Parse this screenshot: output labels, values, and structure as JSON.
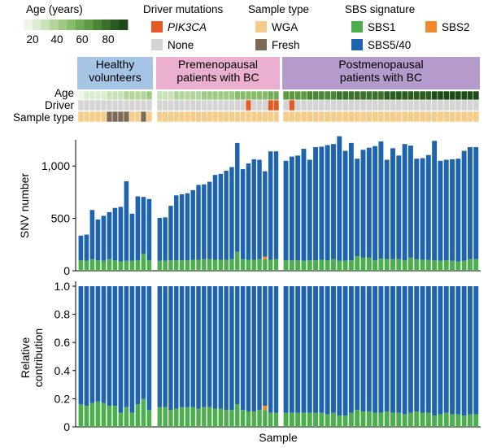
{
  "legend": {
    "age": {
      "title": "Age (years)",
      "ticks": [
        "20",
        "40",
        "60",
        "80"
      ],
      "colors": [
        "#eef6e7",
        "#dcecd0",
        "#c8e1b6",
        "#b3d59b",
        "#9ec982",
        "#88bb6a",
        "#72ab55",
        "#5e9944",
        "#4b8536",
        "#3a702a",
        "#2a5c20",
        "#1e4a18"
      ]
    },
    "driver": {
      "title": "Driver mutations",
      "items": [
        {
          "label": "PIK3CA",
          "color": "#e25a26",
          "italic": true
        },
        {
          "label": "None",
          "color": "#d4d4d4",
          "italic": false
        }
      ]
    },
    "sample_type": {
      "title": "Sample type",
      "items": [
        {
          "label": "WGA",
          "color": "#f6cc8a"
        },
        {
          "label": "Fresh",
          "color": "#7d6a54"
        }
      ]
    },
    "sbs": {
      "title": "SBS signature",
      "items": [
        {
          "label": "SBS1",
          "color": "#4cae4c"
        },
        {
          "label": "SBS2",
          "color": "#f08a2c"
        },
        {
          "label": "SBS5/40",
          "color": "#1e63ad"
        }
      ]
    }
  },
  "groups": [
    {
      "label_lines": [
        "Healthy",
        "volunteers"
      ],
      "color": "#a6c4e4",
      "n": 13
    },
    {
      "label_lines": [
        "Premenopausal",
        "patients with BC"
      ],
      "color": "#ebb0d0",
      "n": 22
    },
    {
      "label_lines": [
        "Postmenopausal",
        "patients with BC"
      ],
      "color": "#b49bcb",
      "n": 33
    }
  ],
  "track_labels": [
    "Age",
    "Driver",
    "Sample type"
  ],
  "samples": {
    "age": [
      22,
      24,
      27,
      28,
      29,
      30,
      31,
      33,
      35,
      36,
      38,
      40,
      42,
      30,
      32,
      33,
      35,
      36,
      38,
      38,
      40,
      41,
      42,
      43,
      44,
      45,
      46,
      47,
      48,
      49,
      50,
      50,
      51,
      52,
      53,
      58,
      60,
      62,
      63,
      64,
      65,
      66,
      67,
      68,
      69,
      70,
      70,
      71,
      72,
      73,
      74,
      74,
      75,
      76,
      77,
      78,
      78,
      79,
      80,
      80,
      81,
      82,
      82,
      83,
      84,
      84,
      85,
      86
    ],
    "driver": [
      "None",
      "None",
      "None",
      "None",
      "None",
      "None",
      "None",
      "None",
      "None",
      "None",
      "None",
      "None",
      "None",
      "None",
      "None",
      "None",
      "None",
      "None",
      "None",
      "None",
      "None",
      "None",
      "None",
      "None",
      "None",
      "None",
      "None",
      "None",
      "None",
      "PIK3CA",
      "None",
      "None",
      "None",
      "PIK3CA",
      "PIK3CA",
      "None",
      "PIK3CA",
      "None",
      "None",
      "None",
      "None",
      "None",
      "None",
      "None",
      "None",
      "None",
      "None",
      "None",
      "None",
      "None",
      "None",
      "None",
      "None",
      "None",
      "None",
      "None",
      "None",
      "None",
      "None",
      "None",
      "None",
      "None",
      "None",
      "None",
      "None",
      "None",
      "None",
      "None"
    ],
    "sample_type": [
      "WGA",
      "WGA",
      "WGA",
      "WGA",
      "WGA",
      "Fresh",
      "Fresh",
      "Fresh",
      "Fresh",
      "WGA",
      "WGA",
      "Fresh",
      "WGA",
      "WGA",
      "WGA",
      "WGA",
      "WGA",
      "WGA",
      "WGA",
      "WGA",
      "WGA",
      "WGA",
      "WGA",
      "WGA",
      "WGA",
      "WGA",
      "WGA",
      "WGA",
      "WGA",
      "WGA",
      "WGA",
      "WGA",
      "WGA",
      "WGA",
      "WGA",
      "WGA",
      "WGA",
      "WGA",
      "WGA",
      "WGA",
      "WGA",
      "WGA",
      "WGA",
      "WGA",
      "WGA",
      "WGA",
      "WGA",
      "WGA",
      "WGA",
      "WGA",
      "WGA",
      "WGA",
      "WGA",
      "WGA",
      "WGA",
      "WGA",
      "WGA",
      "WGA",
      "WGA",
      "WGA",
      "WGA",
      "WGA",
      "WGA",
      "WGA",
      "WGA",
      "WGA",
      "WGA",
      "WGA"
    ]
  },
  "chart_data": [
    {
      "type": "bar",
      "stacked": true,
      "title": "",
      "xlabel": "",
      "ylabel": "SNV number",
      "ylim": [
        0,
        1250
      ],
      "yticks": [
        0,
        500,
        1000
      ],
      "ytick_labels": [
        "0",
        "500",
        "1,000"
      ],
      "series": [
        {
          "name": "SBS1",
          "values": [
            100,
            95,
            110,
            100,
            95,
            110,
            100,
            90,
            95,
            95,
            100,
            160,
            100,
            95,
            95,
            100,
            100,
            100,
            100,
            105,
            105,
            110,
            110,
            105,
            105,
            105,
            110,
            180,
            110,
            105,
            105,
            110,
            110,
            105,
            110,
            100,
            100,
            100,
            95,
            100,
            100,
            105,
            100,
            110,
            95,
            95,
            100,
            140,
            125,
            125,
            100,
            115,
            110,
            110,
            110,
            100,
            125,
            110,
            105,
            105,
            100,
            95,
            100,
            95,
            90,
            95,
            110,
            110
          ]
        },
        {
          "name": "SBS2",
          "values": [
            0,
            0,
            0,
            0,
            0,
            0,
            0,
            0,
            0,
            0,
            0,
            0,
            0,
            0,
            0,
            0,
            0,
            0,
            0,
            0,
            0,
            0,
            0,
            0,
            0,
            0,
            0,
            0,
            0,
            0,
            0,
            0,
            25,
            0,
            0,
            0,
            0,
            0,
            0,
            0,
            0,
            0,
            0,
            0,
            0,
            0,
            0,
            0,
            0,
            0,
            0,
            0,
            0,
            0,
            0,
            0,
            0,
            0,
            0,
            0,
            0,
            0,
            0,
            0,
            0,
            0,
            0,
            0
          ]
        },
        {
          "name": "SBS5/40",
          "values": [
            235,
            250,
            470,
            390,
            430,
            450,
            500,
            520,
            760,
            450,
            610,
            545,
            585,
            410,
            415,
            520,
            620,
            630,
            640,
            665,
            715,
            715,
            740,
            810,
            820,
            850,
            880,
            1040,
            860,
            920,
            960,
            950,
            815,
            1035,
            1030,
            950,
            990,
            1000,
            1070,
            960,
            1080,
            1080,
            1100,
            1100,
            1190,
            1050,
            1120,
            930,
            1030,
            1050,
            1090,
            1120,
            950,
            1060,
            990,
            1110,
            1070,
            960,
            970,
            1000,
            1140,
            955,
            960,
            970,
            980,
            1050,
            1070,
            1070
          ]
        }
      ],
      "totals": [
        335,
        345,
        580,
        490,
        525,
        560,
        600,
        610,
        855,
        545,
        710,
        705,
        685,
        505,
        510,
        620,
        720,
        730,
        740,
        770,
        820,
        825,
        850,
        915,
        925,
        955,
        990,
        1220,
        970,
        1025,
        1065,
        1060,
        950,
        1140,
        1140,
        1050,
        1090,
        1100,
        1165,
        1060,
        1180,
        1185,
        1200,
        1210,
        1285,
        1145,
        1220,
        1070,
        1155,
        1175,
        1190,
        1235,
        1060,
        1170,
        1100,
        1210,
        1195,
        1070,
        1075,
        1105,
        1240,
        1050,
        1060,
        1065,
        1070,
        1145,
        1180,
        1180
      ]
    },
    {
      "type": "bar",
      "stacked": true,
      "title": "",
      "xlabel": "Sample",
      "ylabel": "Relative contribution",
      "ylim": [
        0,
        1.0
      ],
      "yticks": [
        0,
        0.2,
        0.4,
        0.6,
        0.8,
        1.0
      ],
      "ytick_labels": [
        "0",
        "0.2",
        "0.4",
        "0.6",
        "0.8",
        "1.0"
      ],
      "series": [
        {
          "name": "SBS1",
          "values": [
            0.16,
            0.15,
            0.17,
            0.18,
            0.17,
            0.15,
            0.15,
            0.1,
            0.14,
            0.1,
            0.16,
            0.2,
            0.12,
            0.14,
            0.14,
            0.12,
            0.13,
            0.14,
            0.14,
            0.14,
            0.13,
            0.14,
            0.14,
            0.13,
            0.13,
            0.12,
            0.12,
            0.16,
            0.12,
            0.11,
            0.11,
            0.12,
            0.12,
            0.1,
            0.1,
            0.1,
            0.1,
            0.1,
            0.1,
            0.1,
            0.1,
            0.1,
            0.09,
            0.1,
            0.08,
            0.08,
            0.1,
            0.12,
            0.11,
            0.11,
            0.1,
            0.1,
            0.11,
            0.1,
            0.1,
            0.09,
            0.1,
            0.11,
            0.1,
            0.1,
            0.08,
            0.09,
            0.1,
            0.09,
            0.09,
            0.08,
            0.09,
            0.09
          ]
        },
        {
          "name": "SBS2",
          "values": [
            0,
            0,
            0,
            0,
            0,
            0,
            0,
            0,
            0,
            0,
            0,
            0,
            0,
            0,
            0,
            0,
            0,
            0,
            0,
            0,
            0,
            0,
            0,
            0,
            0,
            0,
            0,
            0,
            0,
            0,
            0,
            0,
            0.03,
            0,
            0,
            0,
            0,
            0,
            0,
            0,
            0,
            0,
            0,
            0,
            0,
            0,
            0,
            0,
            0,
            0,
            0,
            0,
            0,
            0,
            0,
            0,
            0,
            0,
            0,
            0,
            0,
            0,
            0,
            0,
            0,
            0,
            0,
            0
          ]
        },
        {
          "name": "SBS5/40",
          "values": [
            0.84,
            0.85,
            0.83,
            0.82,
            0.83,
            0.85,
            0.85,
            0.9,
            0.86,
            0.9,
            0.84,
            0.8,
            0.88,
            0.86,
            0.86,
            0.88,
            0.87,
            0.86,
            0.86,
            0.86,
            0.87,
            0.86,
            0.86,
            0.87,
            0.87,
            0.88,
            0.88,
            0.84,
            0.88,
            0.89,
            0.89,
            0.88,
            0.85,
            0.9,
            0.9,
            0.9,
            0.9,
            0.9,
            0.9,
            0.9,
            0.9,
            0.9,
            0.91,
            0.9,
            0.92,
            0.92,
            0.9,
            0.88,
            0.89,
            0.89,
            0.9,
            0.9,
            0.89,
            0.9,
            0.9,
            0.91,
            0.9,
            0.89,
            0.9,
            0.9,
            0.92,
            0.91,
            0.9,
            0.91,
            0.91,
            0.92,
            0.91,
            0.91
          ]
        }
      ]
    }
  ]
}
